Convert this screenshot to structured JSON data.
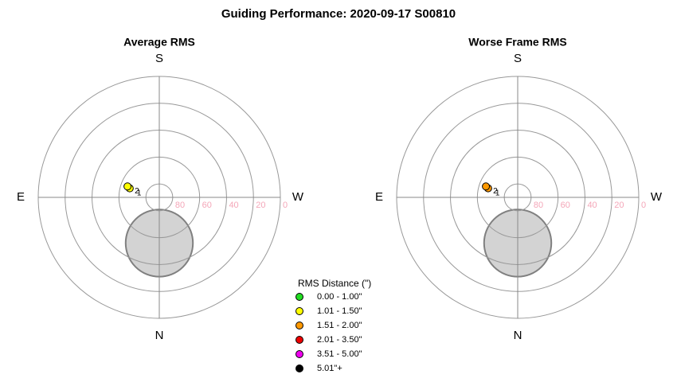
{
  "title": "Guiding Performance: 2020-09-17 S00810",
  "legend": {
    "title": "RMS Distance (\")",
    "items": [
      {
        "label": "0.00 - 1.00\"",
        "color": "#22dd22"
      },
      {
        "label": "1.01 - 1.50\"",
        "color": "#ffff00"
      },
      {
        "label": "1.51 - 2.00\"",
        "color": "#ff9900"
      },
      {
        "label": "2.01 - 3.50\"",
        "color": "#ee0000"
      },
      {
        "label": "3.51 - 5.00\"",
        "color": "#ee00ee"
      },
      {
        "label": "5.01\"+",
        "color": "#000000"
      }
    ]
  },
  "chart_data": [
    {
      "type": "polar",
      "title": "Average RMS",
      "compass": [
        "N",
        "E",
        "S",
        "W"
      ],
      "rlim": [
        90,
        0
      ],
      "rticks": [
        80,
        60,
        40,
        20,
        0
      ],
      "exclusion": {
        "azimuth": 0,
        "altitude": 56,
        "radius": 25
      },
      "points": [
        {
          "label": "1",
          "azimuth": 107,
          "altitude": 67,
          "color": "#ffff00"
        },
        {
          "label": "2",
          "azimuth": 109,
          "altitude": 65,
          "color": "#ffff00"
        }
      ]
    },
    {
      "type": "polar",
      "title": "Worse Frame RMS",
      "compass": [
        "N",
        "E",
        "S",
        "W"
      ],
      "rlim": [
        90,
        0
      ],
      "rticks": [
        80,
        60,
        40,
        20,
        0
      ],
      "exclusion": {
        "azimuth": 0,
        "altitude": 56,
        "radius": 25
      },
      "points": [
        {
          "label": "1",
          "azimuth": 107,
          "altitude": 67,
          "color": "#ff9900"
        },
        {
          "label": "2",
          "azimuth": 109,
          "altitude": 65,
          "color": "#ff9900"
        }
      ]
    }
  ]
}
